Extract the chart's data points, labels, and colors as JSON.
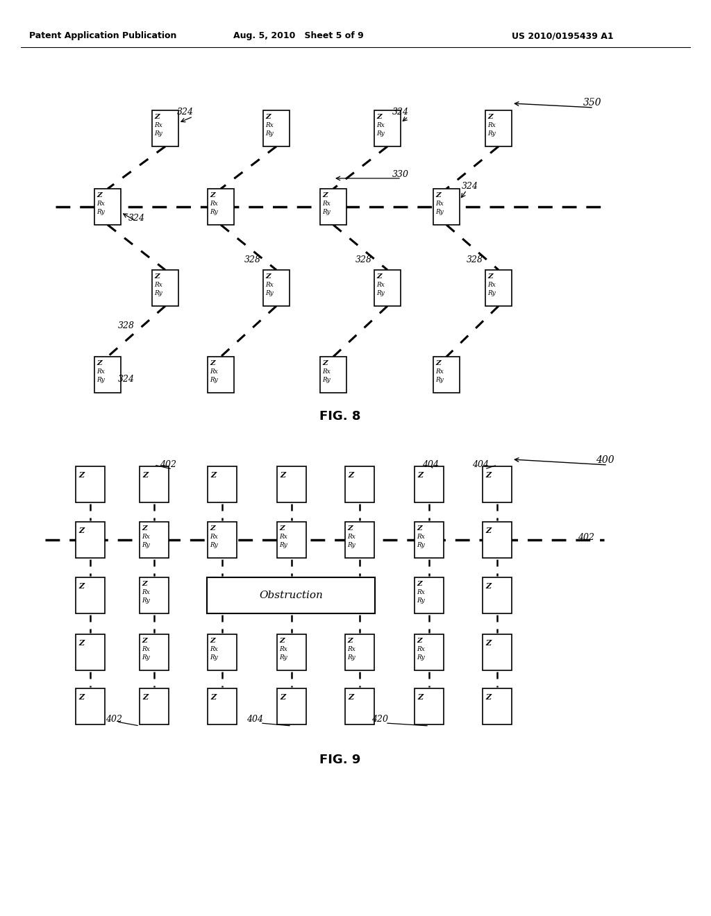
{
  "bg_color": "#ffffff",
  "fig_width": 10.24,
  "fig_height": 13.2,
  "header_text": "Patent Application Publication",
  "header_date": "Aug. 5, 2010   Sheet 5 of 9",
  "header_patent": "US 2010/0195439 A1",
  "fig8_label": "FIG. 8",
  "fig9_label": "FIG. 9"
}
